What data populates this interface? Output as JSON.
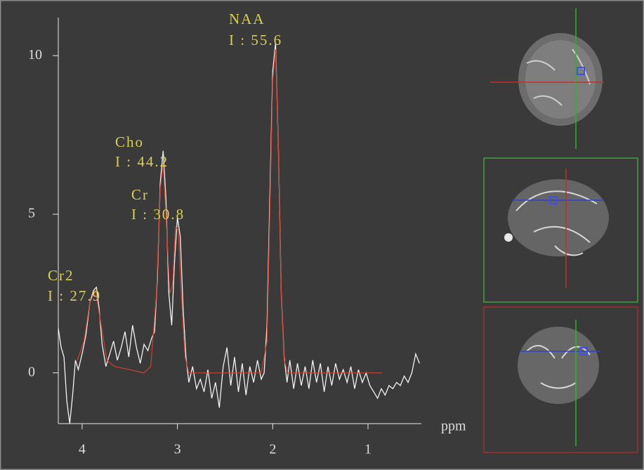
{
  "chart_data": {
    "type": "line",
    "xlabel": "ppm",
    "xlim": [
      4.25,
      0.44
    ],
    "ylim": [
      -1.6,
      11.2
    ],
    "xticks": [
      4,
      3,
      2,
      1
    ],
    "yticks": [
      0,
      5,
      10
    ],
    "series": [
      {
        "color": "#f2f2f2",
        "x": [
          4.25,
          4.22,
          4.19,
          4.16,
          4.13,
          4.1,
          4.07,
          4.04,
          4.0,
          3.96,
          3.92,
          3.88,
          3.85,
          3.82,
          3.79,
          3.75,
          3.71,
          3.67,
          3.63,
          3.59,
          3.55,
          3.51,
          3.47,
          3.43,
          3.39,
          3.35,
          3.31,
          3.27,
          3.24,
          3.21,
          3.18,
          3.15,
          3.12,
          3.09,
          3.06,
          3.03,
          3.0,
          2.97,
          2.94,
          2.91,
          2.88,
          2.84,
          2.8,
          2.76,
          2.72,
          2.68,
          2.64,
          2.6,
          2.56,
          2.52,
          2.48,
          2.44,
          2.4,
          2.36,
          2.32,
          2.28,
          2.24,
          2.2,
          2.16,
          2.12,
          2.09,
          2.06,
          2.03,
          2.0,
          1.97,
          1.94,
          1.91,
          1.88,
          1.85,
          1.82,
          1.78,
          1.74,
          1.7,
          1.66,
          1.62,
          1.58,
          1.54,
          1.5,
          1.46,
          1.42,
          1.38,
          1.34,
          1.3,
          1.26,
          1.22,
          1.18,
          1.14,
          1.1,
          1.06,
          1.02,
          0.98,
          0.94,
          0.9,
          0.86,
          0.82,
          0.78,
          0.74,
          0.7,
          0.66,
          0.62,
          0.58,
          0.54,
          0.5,
          0.46
        ],
        "values": [
          1.4,
          0.8,
          0.5,
          -0.9,
          -1.6,
          -0.7,
          0.4,
          0.1,
          0.6,
          1.2,
          2.2,
          2.6,
          2.7,
          2.0,
          0.9,
          0.2,
          0.6,
          1.0,
          0.4,
          0.8,
          1.3,
          0.5,
          1.5,
          0.8,
          0.3,
          0.9,
          0.7,
          1.1,
          1.3,
          3.0,
          6.0,
          7.0,
          5.5,
          2.5,
          1.5,
          3.5,
          4.9,
          4.3,
          2.0,
          0.5,
          -0.3,
          0.2,
          -0.5,
          -0.2,
          -0.6,
          0.1,
          -0.8,
          -0.3,
          -1.1,
          0.2,
          0.8,
          -0.4,
          0.5,
          -0.6,
          0.3,
          -0.7,
          0.2,
          -0.3,
          0.4,
          -0.2,
          0.0,
          1.5,
          5.5,
          9.5,
          10.4,
          7.0,
          2.5,
          0.5,
          -0.3,
          0.4,
          -0.5,
          0.3,
          -0.4,
          0.2,
          -0.5,
          0.4,
          -0.3,
          0.3,
          -0.6,
          0.2,
          -0.4,
          0.3,
          -0.2,
          0.1,
          -0.3,
          0.2,
          -0.5,
          0.1,
          -0.3,
          0.0,
          -0.4,
          -0.6,
          -0.8,
          -0.5,
          -0.7,
          -0.4,
          -0.5,
          -0.3,
          -0.4,
          -0.1,
          -0.3,
          0.0,
          0.6,
          0.3
        ]
      },
      {
        "color": "#d04030",
        "x": [
          4.05,
          3.98,
          3.92,
          3.86,
          3.8,
          3.74,
          3.66,
          3.5,
          3.35,
          3.28,
          3.22,
          3.18,
          3.15,
          3.12,
          3.08,
          3.05,
          3.02,
          2.99,
          2.96,
          2.92,
          2.88,
          2.5,
          2.12,
          2.06,
          2.03,
          2.0,
          1.97,
          1.94,
          1.91,
          1.88,
          1.84,
          1.6,
          1.2,
          0.85
        ],
        "values": [
          0.4,
          1.0,
          2.2,
          2.6,
          1.5,
          0.4,
          0.2,
          0.1,
          0.0,
          0.2,
          2.5,
          5.8,
          6.6,
          5.0,
          2.5,
          2.8,
          4.6,
          4.5,
          2.5,
          0.5,
          0.0,
          0.0,
          0.0,
          1.0,
          5.0,
          9.2,
          10.2,
          7.0,
          2.5,
          0.4,
          0.0,
          0.0,
          0.0,
          0.0
        ]
      }
    ],
    "annotations": [
      "NAA",
      "I : 55.6",
      "Cho",
      "I : 44.2",
      "Cr",
      "I : 30.8",
      "Cr2",
      "I : 27.9"
    ]
  }
}
